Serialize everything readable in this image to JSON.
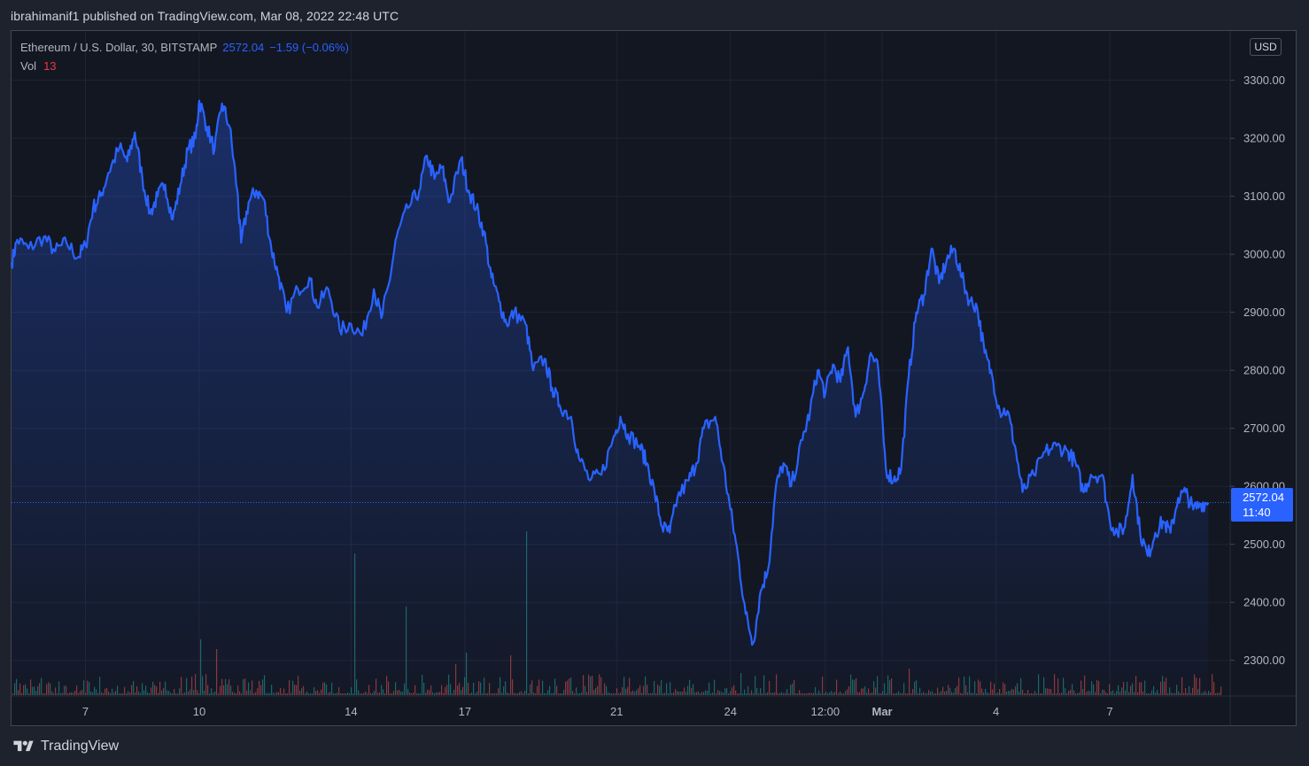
{
  "publish_line": "ibrahimanif1 published on TradingView.com, Mar 08, 2022 22:48 UTC",
  "legend": {
    "symbol": "Ethereum / U.S. Dollar, 30, BITSTAMP",
    "last": "2572.04",
    "change": "−1.59 (−0.06%)",
    "vol_label": "Vol",
    "vol_value": "13"
  },
  "currency": "USD",
  "price_tag": {
    "price": "2572.04",
    "countdown": "11:40"
  },
  "brand": "TradingView",
  "colors": {
    "line": "#2962ff",
    "vol_up": "#26a69a",
    "vol_down": "#ef5350",
    "background": "#131722",
    "grid": "#1f2433"
  },
  "chart_data": {
    "type": "area",
    "y_ticks": [
      "3300.00",
      "3200.00",
      "3100.00",
      "3000.00",
      "2900.00",
      "2800.00",
      "2700.00",
      "2600.00",
      "2500.00",
      "2400.00",
      "2300.00"
    ],
    "ylim": [
      2240,
      3385
    ],
    "x_ticks": [
      {
        "label": "7",
        "t": 2.0
      },
      {
        "label": "10",
        "t": 5.0
      },
      {
        "label": "14",
        "t": 9.0
      },
      {
        "label": "17",
        "t": 12.0
      },
      {
        "label": "21",
        "t": 16.0
      },
      {
        "label": "24",
        "t": 19.0
      },
      {
        "label": "12:00",
        "t": 21.5
      },
      {
        "label": "Mar",
        "t": 23.0
      },
      {
        "label": "4",
        "t": 26.0
      },
      {
        "label": "7",
        "t": 29.0
      }
    ],
    "xlim": [
      0.05,
      32.15
    ],
    "series": [
      {
        "points": [
          [
            0.05,
            2985
          ],
          [
            0.2,
            3025
          ],
          [
            0.5,
            3010
          ],
          [
            0.9,
            3030
          ],
          [
            1.2,
            3005
          ],
          [
            1.5,
            3020
          ],
          [
            1.8,
            2995
          ],
          [
            2.0,
            3015
          ],
          [
            2.2,
            3080
          ],
          [
            2.4,
            3100
          ],
          [
            2.6,
            3140
          ],
          [
            2.9,
            3185
          ],
          [
            3.1,
            3160
          ],
          [
            3.3,
            3210
          ],
          [
            3.5,
            3130
          ],
          [
            3.7,
            3070
          ],
          [
            3.9,
            3100
          ],
          [
            4.1,
            3120
          ],
          [
            4.3,
            3060
          ],
          [
            4.5,
            3120
          ],
          [
            4.7,
            3180
          ],
          [
            4.9,
            3200
          ],
          [
            5.0,
            3265
          ],
          [
            5.2,
            3220
          ],
          [
            5.4,
            3180
          ],
          [
            5.6,
            3260
          ],
          [
            5.8,
            3220
          ],
          [
            6.0,
            3110
          ],
          [
            6.1,
            3020
          ],
          [
            6.3,
            3090
          ],
          [
            6.5,
            3110
          ],
          [
            6.7,
            3095
          ],
          [
            6.9,
            3010
          ],
          [
            7.1,
            2960
          ],
          [
            7.3,
            2900
          ],
          [
            7.6,
            2940
          ],
          [
            7.9,
            2960
          ],
          [
            8.1,
            2910
          ],
          [
            8.4,
            2940
          ],
          [
            8.7,
            2870
          ],
          [
            9.0,
            2880
          ],
          [
            9.3,
            2860
          ],
          [
            9.6,
            2940
          ],
          [
            9.8,
            2890
          ],
          [
            10.0,
            2950
          ],
          [
            10.2,
            3030
          ],
          [
            10.5,
            3080
          ],
          [
            10.8,
            3110
          ],
          [
            11.0,
            3170
          ],
          [
            11.2,
            3130
          ],
          [
            11.4,
            3150
          ],
          [
            11.6,
            3090
          ],
          [
            11.9,
            3165
          ],
          [
            12.1,
            3110
          ],
          [
            12.3,
            3080
          ],
          [
            12.5,
            3040
          ],
          [
            12.7,
            2960
          ],
          [
            12.9,
            2920
          ],
          [
            13.1,
            2880
          ],
          [
            13.3,
            2900
          ],
          [
            13.6,
            2880
          ],
          [
            13.8,
            2800
          ],
          [
            14.1,
            2820
          ],
          [
            14.3,
            2770
          ],
          [
            14.5,
            2740
          ],
          [
            14.8,
            2720
          ],
          [
            15.0,
            2650
          ],
          [
            15.3,
            2610
          ],
          [
            15.6,
            2620
          ],
          [
            15.9,
            2680
          ],
          [
            16.1,
            2720
          ],
          [
            16.3,
            2690
          ],
          [
            16.6,
            2670
          ],
          [
            16.8,
            2640
          ],
          [
            17.0,
            2590
          ],
          [
            17.2,
            2530
          ],
          [
            17.4,
            2520
          ],
          [
            17.6,
            2580
          ],
          [
            17.9,
            2610
          ],
          [
            18.1,
            2640
          ],
          [
            18.3,
            2700
          ],
          [
            18.6,
            2720
          ],
          [
            18.8,
            2640
          ],
          [
            19.0,
            2560
          ],
          [
            19.2,
            2480
          ],
          [
            19.4,
            2380
          ],
          [
            19.6,
            2330
          ],
          [
            19.8,
            2420
          ],
          [
            20.0,
            2460
          ],
          [
            20.2,
            2600
          ],
          [
            20.4,
            2640
          ],
          [
            20.6,
            2600
          ],
          [
            20.9,
            2680
          ],
          [
            21.1,
            2730
          ],
          [
            21.3,
            2800
          ],
          [
            21.5,
            2760
          ],
          [
            21.7,
            2810
          ],
          [
            21.9,
            2780
          ],
          [
            22.1,
            2840
          ],
          [
            22.3,
            2720
          ],
          [
            22.5,
            2760
          ],
          [
            22.7,
            2830
          ],
          [
            22.9,
            2800
          ],
          [
            23.1,
            2630
          ],
          [
            23.3,
            2610
          ],
          [
            23.5,
            2630
          ],
          [
            23.7,
            2790
          ],
          [
            23.9,
            2900
          ],
          [
            24.1,
            2930
          ],
          [
            24.3,
            3010
          ],
          [
            24.5,
            2950
          ],
          [
            24.7,
            2990
          ],
          [
            24.9,
            3010
          ],
          [
            25.1,
            2960
          ],
          [
            25.3,
            2920
          ],
          [
            25.5,
            2910
          ],
          [
            25.7,
            2830
          ],
          [
            25.9,
            2790
          ],
          [
            26.1,
            2730
          ],
          [
            26.3,
            2730
          ],
          [
            26.5,
            2670
          ],
          [
            26.7,
            2590
          ],
          [
            27.0,
            2620
          ],
          [
            27.3,
            2660
          ],
          [
            27.6,
            2670
          ],
          [
            27.9,
            2660
          ],
          [
            28.1,
            2640
          ],
          [
            28.3,
            2590
          ],
          [
            28.5,
            2620
          ],
          [
            28.8,
            2620
          ],
          [
            29.0,
            2540
          ],
          [
            29.2,
            2520
          ],
          [
            29.4,
            2530
          ],
          [
            29.6,
            2620
          ],
          [
            29.8,
            2520
          ],
          [
            30.0,
            2480
          ],
          [
            30.2,
            2520
          ],
          [
            30.4,
            2540
          ],
          [
            30.6,
            2520
          ],
          [
            30.8,
            2580
          ],
          [
            31.0,
            2590
          ],
          [
            31.2,
            2560
          ],
          [
            31.4,
            2570
          ],
          [
            31.6,
            2572
          ]
        ]
      }
    ]
  }
}
